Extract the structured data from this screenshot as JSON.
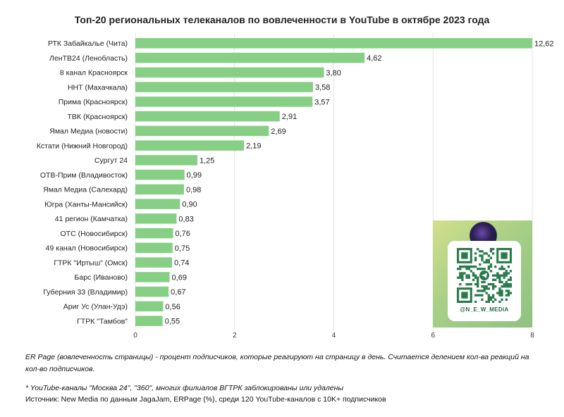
{
  "chart_data": {
    "type": "bar",
    "orientation": "horizontal",
    "title": "Топ-20 региональных телеканалов по вовлеченности в YouTube в октябре 2023 года",
    "categories": [
      "РТК Забайкалье (Чита)",
      "ЛенТВ24 (Ленобласть)",
      "8 канал Красноярск",
      "ННТ (Махачкала)",
      "Прима (Красноярск)",
      "ТВК (Красноярск)",
      "Ямал Медиа (новости)",
      "Кстати (Нижний Новгород)",
      "Сургут 24",
      "ОТВ-Прим (Владивосток)",
      "Ямал Медиа (Салехард)",
      "Югра (Ханты-Мансийск)",
      "41 регион (Камчатка)",
      "ОТС (Новосибирск)",
      "49 канал (Новосибирск)",
      "ГТРК \"Иртыш\" (Омск)",
      "Барс (Иваново)",
      "Губерния 33 (Владимир)",
      "Ариг Ус (Улан-Удэ)",
      "ГТРК \"Тамбов\""
    ],
    "values": [
      12.62,
      4.62,
      3.8,
      3.58,
      3.57,
      2.91,
      2.69,
      2.19,
      1.25,
      0.99,
      0.98,
      0.9,
      0.83,
      0.76,
      0.75,
      0.74,
      0.69,
      0.67,
      0.56,
      0.55
    ],
    "value_labels": [
      "12,62",
      "4,62",
      "3,80",
      "3,58",
      "3,57",
      "2,91",
      "2,69",
      "2,19",
      "1,25",
      "0,99",
      "0,98",
      "0,90",
      "0,83",
      "0,76",
      "0,75",
      "0,74",
      "0,69",
      "0,67",
      "0,56",
      "0,55"
    ],
    "xlim": [
      0,
      8
    ],
    "xticks": [
      0,
      2,
      4,
      6,
      8
    ],
    "xtick_labels": [
      "0",
      "2",
      "4",
      "6",
      "8"
    ],
    "grid": "vertical",
    "bar_color": "#86cf84",
    "note": "first bar truncated at axis maximum"
  },
  "qr_card": {
    "handle": "@N_E_W_MEDIA",
    "icon": "telegram-icon",
    "accent": "#2a6e46"
  },
  "notes": {
    "er_definition": "ER Page (вовлеченность страницы) - процент подписчиков, которые реагируют на страницу в день. Считается делением кол-ва реакций на кол-во подписчиков.",
    "blocked": "* YouTube-каналы \"Москва 24\", \"360\", многих филиалов ВГТРК заблокированы или удалены",
    "source": "Источник: New Media по данным JagaJam, ERPage (%), среди 120 YouTube-каналов с 10K+ подписчиков"
  }
}
